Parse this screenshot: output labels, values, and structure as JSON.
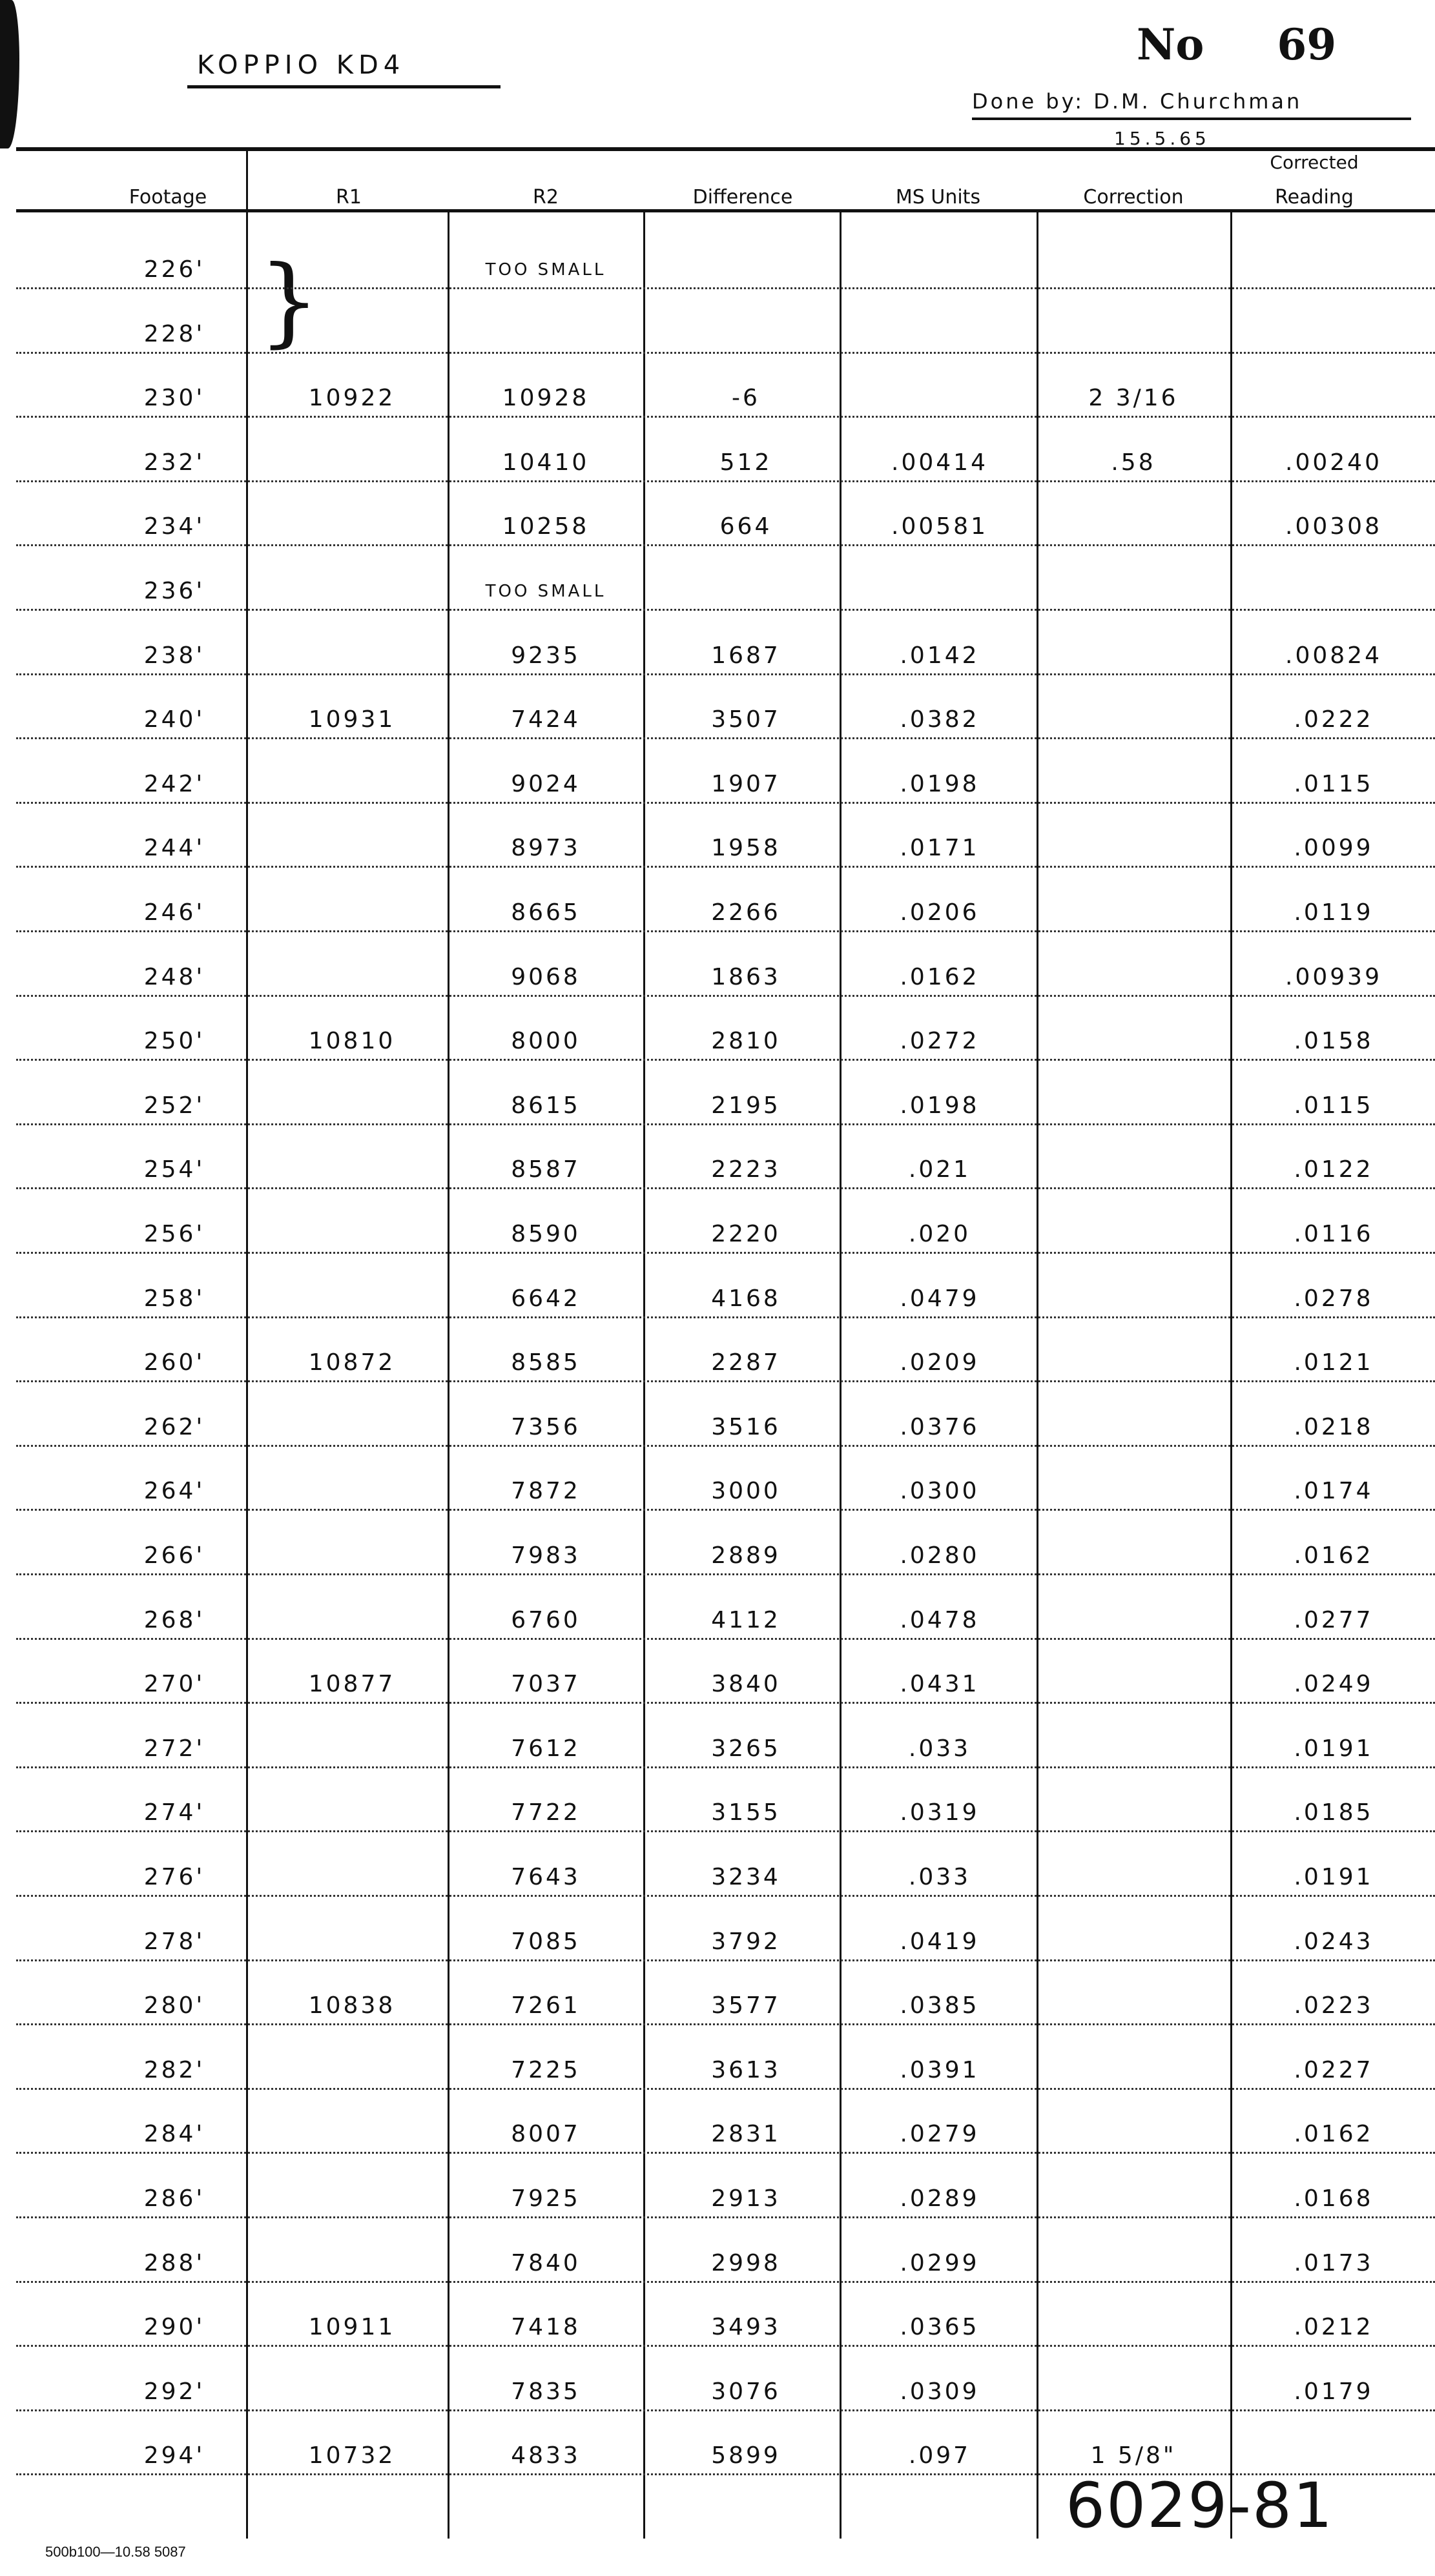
{
  "header": {
    "site": "KOPPIO   KD4",
    "number_label": "No",
    "number": "69",
    "done_by": "Done by: D.M. Churchman",
    "date": "15.5.65"
  },
  "columns": {
    "footage": "Footage",
    "r1": "R1",
    "r2": "R2",
    "difference": "Difference",
    "ms_units": "MS Units",
    "correction": "Correction",
    "corrected_line1": "Corrected",
    "corrected_line2": "Reading"
  },
  "rows": [
    {
      "footage": "226'",
      "r1": "",
      "r2": "TOO SMALL",
      "diff": "",
      "ms": "",
      "corr": "",
      "reading": ""
    },
    {
      "footage": "228'",
      "r1": "",
      "r2": "",
      "diff": "",
      "ms": "",
      "corr": "",
      "reading": ""
    },
    {
      "footage": "230'",
      "r1": "10922",
      "r2": "10928",
      "diff": "-6",
      "ms": "",
      "corr": "2 3/16",
      "reading": ""
    },
    {
      "footage": "232'",
      "r1": "",
      "r2": "10410",
      "diff": "512",
      "ms": ".00414",
      "corr": ".58",
      "reading": ".00240"
    },
    {
      "footage": "234'",
      "r1": "",
      "r2": "10258",
      "diff": "664",
      "ms": ".00581",
      "corr": "",
      "reading": ".00308"
    },
    {
      "footage": "236'",
      "r1": "",
      "r2": "TOO SMALL",
      "diff": "",
      "ms": "",
      "corr": "",
      "reading": ""
    },
    {
      "footage": "238'",
      "r1": "",
      "r2": "9235",
      "diff": "1687",
      "ms": ".0142",
      "corr": "",
      "reading": ".00824"
    },
    {
      "footage": "240'",
      "r1": "10931",
      "r2": "7424",
      "diff": "3507",
      "ms": ".0382",
      "corr": "",
      "reading": ".0222"
    },
    {
      "footage": "242'",
      "r1": "",
      "r2": "9024",
      "diff": "1907",
      "ms": ".0198",
      "corr": "",
      "reading": ".0115"
    },
    {
      "footage": "244'",
      "r1": "",
      "r2": "8973",
      "diff": "1958",
      "ms": ".0171",
      "corr": "",
      "reading": ".0099"
    },
    {
      "footage": "246'",
      "r1": "",
      "r2": "8665",
      "diff": "2266",
      "ms": ".0206",
      "corr": "",
      "reading": ".0119"
    },
    {
      "footage": "248'",
      "r1": "",
      "r2": "9068",
      "diff": "1863",
      "ms": ".0162",
      "corr": "",
      "reading": ".00939"
    },
    {
      "footage": "250'",
      "r1": "10810",
      "r2": "8000",
      "diff": "2810",
      "ms": ".0272",
      "corr": "",
      "reading": ".0158"
    },
    {
      "footage": "252'",
      "r1": "",
      "r2": "8615",
      "diff": "2195",
      "ms": ".0198",
      "corr": "",
      "reading": ".0115"
    },
    {
      "footage": "254'",
      "r1": "",
      "r2": "8587",
      "diff": "2223",
      "ms": ".021",
      "corr": "",
      "reading": ".0122"
    },
    {
      "footage": "256'",
      "r1": "",
      "r2": "8590",
      "diff": "2220",
      "ms": ".020",
      "corr": "",
      "reading": ".0116"
    },
    {
      "footage": "258'",
      "r1": "",
      "r2": "6642",
      "diff": "4168",
      "ms": ".0479",
      "corr": "",
      "reading": ".0278"
    },
    {
      "footage": "260'",
      "r1": "10872",
      "r2": "8585",
      "diff": "2287",
      "ms": ".0209",
      "corr": "",
      "reading": ".0121"
    },
    {
      "footage": "262'",
      "r1": "",
      "r2": "7356",
      "diff": "3516",
      "ms": ".0376",
      "corr": "",
      "reading": ".0218"
    },
    {
      "footage": "264'",
      "r1": "",
      "r2": "7872",
      "diff": "3000",
      "ms": ".0300",
      "corr": "",
      "reading": ".0174"
    },
    {
      "footage": "266'",
      "r1": "",
      "r2": "7983",
      "diff": "2889",
      "ms": ".0280",
      "corr": "",
      "reading": ".0162"
    },
    {
      "footage": "268'",
      "r1": "",
      "r2": "6760",
      "diff": "4112",
      "ms": ".0478",
      "corr": "",
      "reading": ".0277"
    },
    {
      "footage": "270'",
      "r1": "10877",
      "r2": "7037",
      "diff": "3840",
      "ms": ".0431",
      "corr": "",
      "reading": ".0249"
    },
    {
      "footage": "272'",
      "r1": "",
      "r2": "7612",
      "diff": "3265",
      "ms": ".033",
      "corr": "",
      "reading": ".0191"
    },
    {
      "footage": "274'",
      "r1": "",
      "r2": "7722",
      "diff": "3155",
      "ms": ".0319",
      "corr": "",
      "reading": ".0185"
    },
    {
      "footage": "276'",
      "r1": "",
      "r2": "7643",
      "diff": "3234",
      "ms": ".033",
      "corr": "",
      "reading": ".0191"
    },
    {
      "footage": "278'",
      "r1": "",
      "r2": "7085",
      "diff": "3792",
      "ms": ".0419",
      "corr": "",
      "reading": ".0243"
    },
    {
      "footage": "280'",
      "r1": "10838",
      "r2": "7261",
      "diff": "3577",
      "ms": ".0385",
      "corr": "",
      "reading": ".0223"
    },
    {
      "footage": "282'",
      "r1": "",
      "r2": "7225",
      "diff": "3613",
      "ms": ".0391",
      "corr": "",
      "reading": ".0227"
    },
    {
      "footage": "284'",
      "r1": "",
      "r2": "8007",
      "diff": "2831",
      "ms": ".0279",
      "corr": "",
      "reading": ".0162"
    },
    {
      "footage": "286'",
      "r1": "",
      "r2": "7925",
      "diff": "2913",
      "ms": ".0289",
      "corr": "",
      "reading": ".0168"
    },
    {
      "footage": "288'",
      "r1": "",
      "r2": "7840",
      "diff": "2998",
      "ms": ".0299",
      "corr": "",
      "reading": ".0173"
    },
    {
      "footage": "290'",
      "r1": "10911",
      "r2": "7418",
      "diff": "3493",
      "ms": ".0365",
      "corr": "",
      "reading": ".0212"
    },
    {
      "footage": "292'",
      "r1": "",
      "r2": "7835",
      "diff": "3076",
      "ms": ".0309",
      "corr": "",
      "reading": ".0179"
    },
    {
      "footage": "294'",
      "r1": "10732",
      "r2": "4833",
      "diff": "5899",
      "ms": ".097",
      "corr": "1 5/8\"",
      "reading": ""
    }
  ],
  "annotation": "6029-81",
  "footer_code": "500b100—10.58  5087"
}
